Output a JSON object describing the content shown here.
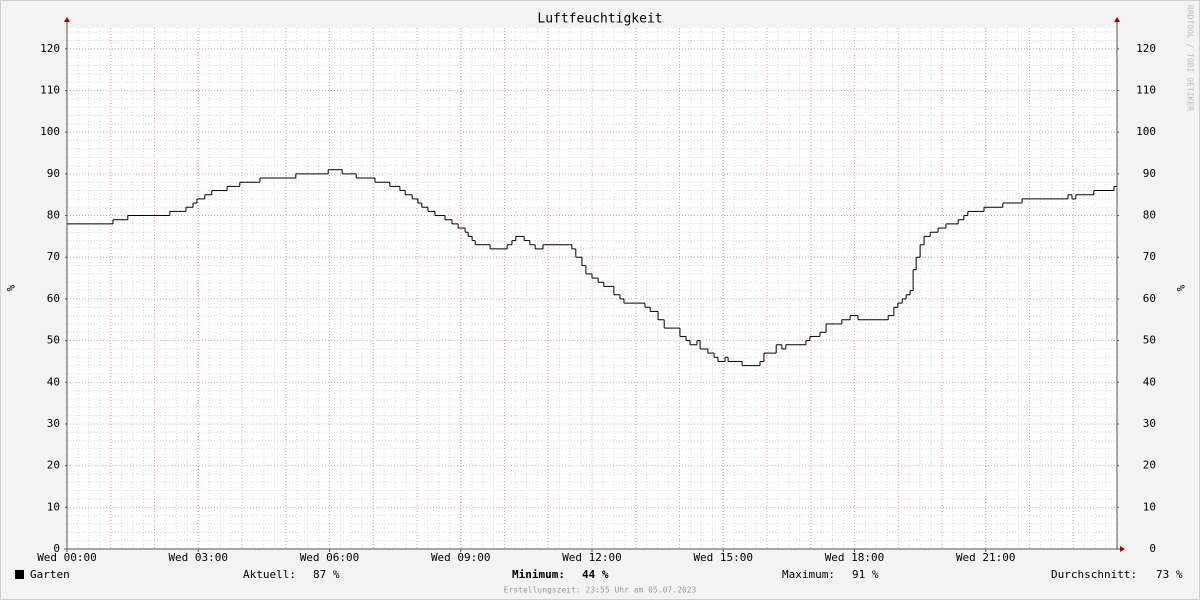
{
  "chart_data": {
    "type": "line",
    "title": "Luftfeuchtigkeit",
    "y_label": "%",
    "x": [
      0,
      1.05,
      1.39,
      2.35,
      2.72,
      2.88,
      2.97,
      3.15,
      3.31,
      3.66,
      3.95,
      4.41,
      5.23,
      5.97,
      6.29,
      6.61,
      7.04,
      7.38,
      7.61,
      7.73,
      7.89,
      8.02,
      8.11,
      8.25,
      8.41,
      8.64,
      8.8,
      8.94,
      9.1,
      9.17,
      9.26,
      9.33,
      9.67,
      10.06,
      10.17,
      10.26,
      10.45,
      10.58,
      10.7,
      10.88,
      11.54,
      11.63,
      11.77,
      11.86,
      12.0,
      12.14,
      12.27,
      12.5,
      12.64,
      12.73,
      13.21,
      13.33,
      13.51,
      13.65,
      14.01,
      14.15,
      14.24,
      14.4,
      14.47,
      14.65,
      14.79,
      14.88,
      15.04,
      15.11,
      15.43,
      15.84,
      15.93,
      16.21,
      16.34,
      16.43,
      16.89,
      16.98,
      17.21,
      17.35,
      17.71,
      17.9,
      18.08,
      18.77,
      18.9,
      18.99,
      19.09,
      19.18,
      19.27,
      19.34,
      19.41,
      19.5,
      19.59,
      19.73,
      19.91,
      20.09,
      20.37,
      20.5,
      20.59,
      20.96,
      21.39,
      21.83,
      22.88,
      22.97,
      23.06,
      23.47,
      23.93
    ],
    "series": [
      {
        "name": "Garten",
        "color": "#000000",
        "values": [
          78,
          79,
          80,
          81,
          82,
          83,
          84,
          85,
          86,
          87,
          88,
          89,
          90,
          91,
          90,
          89,
          88,
          87,
          86,
          85,
          84,
          83,
          82,
          81,
          80,
          79,
          78,
          77,
          76,
          75,
          74,
          73,
          72,
          73,
          74,
          75,
          74,
          73,
          72,
          73,
          72,
          70,
          68,
          66,
          65,
          64,
          63,
          61,
          60,
          59,
          58,
          57,
          55,
          53,
          51,
          50,
          49,
          50,
          48,
          47,
          46,
          45,
          46,
          45,
          44,
          45,
          47,
          49,
          48,
          49,
          50,
          51,
          52,
          54,
          55,
          56,
          55,
          56,
          58,
          59,
          60,
          61,
          62,
          67,
          70,
          73,
          75,
          76,
          77,
          78,
          79,
          80,
          81,
          82,
          83,
          84,
          85,
          84,
          85,
          86,
          87
        ]
      }
    ],
    "xlim": [
      0,
      24
    ],
    "xticks": [
      {
        "value": 0,
        "label": "Wed 00:00"
      },
      {
        "value": 3,
        "label": "Wed 03:00"
      },
      {
        "value": 6,
        "label": "Wed 06:00"
      },
      {
        "value": 9,
        "label": "Wed 09:00"
      },
      {
        "value": 12,
        "label": "Wed 12:00"
      },
      {
        "value": 15,
        "label": "Wed 15:00"
      },
      {
        "value": 18,
        "label": "Wed 18:00"
      },
      {
        "value": 21,
        "label": "Wed 21:00"
      }
    ],
    "ylim": [
      0,
      125
    ],
    "yticks": [
      0,
      10,
      20,
      30,
      40,
      50,
      60,
      70,
      80,
      90,
      100,
      110,
      120
    ],
    "grid": true,
    "stats": [
      {
        "label": "Aktuell:",
        "value": "87 %"
      },
      {
        "label": "Minimum:",
        "value": "44 %"
      },
      {
        "label": "Maximum:",
        "value": "91 %"
      },
      {
        "label": "Durchschnitt:",
        "value": "73 %"
      }
    ],
    "footer": "Erstellungszeit: 23:55 Uhr am 05.07.2023",
    "watermark": "RRDTOOL / TOBI OETIKER"
  }
}
